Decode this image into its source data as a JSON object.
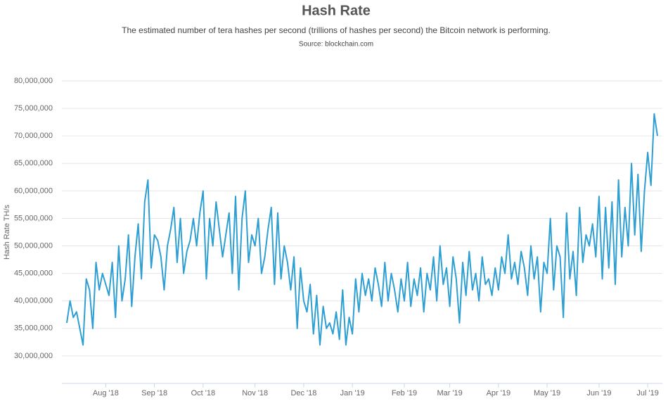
{
  "chart_data": {
    "type": "line",
    "title": "Hash Rate",
    "subtitle": "The estimated number of tera hashes per second (trillions of hashes per second) the Bitcoin network is performing.",
    "source": "Source: blockchain.com",
    "y_label": "Hash Rate TH/s",
    "color": "#2e9fd3",
    "grid": true,
    "ylim": [
      25000000,
      80000000
    ],
    "yticks": [
      {
        "value": 30000000,
        "label": "30,000,000"
      },
      {
        "value": 35000000,
        "label": "35,000,000"
      },
      {
        "value": 40000000,
        "label": "40,000,000"
      },
      {
        "value": 45000000,
        "label": "45,000,000"
      },
      {
        "value": 50000000,
        "label": "50,000,000"
      },
      {
        "value": 55000000,
        "label": "55,000,000"
      },
      {
        "value": 60000000,
        "label": "60,000,000"
      },
      {
        "value": 65000000,
        "label": "65,000,000"
      },
      {
        "value": 70000000,
        "label": "70,000,000"
      },
      {
        "value": 75000000,
        "label": "75,000,000"
      },
      {
        "value": 80000000,
        "label": "80,000,000"
      }
    ],
    "categories": [
      null,
      null,
      null,
      null,
      null,
      null,
      null,
      null,
      null,
      null,
      null,
      null,
      "Aug '18",
      null,
      null,
      null,
      null,
      null,
      null,
      null,
      null,
      null,
      null,
      null,
      null,
      null,
      null,
      "Sep '18",
      null,
      null,
      null,
      null,
      null,
      null,
      null,
      null,
      null,
      null,
      null,
      null,
      null,
      null,
      "Oct '18",
      null,
      null,
      null,
      null,
      null,
      null,
      null,
      null,
      null,
      null,
      null,
      null,
      null,
      null,
      null,
      "Nov '18",
      null,
      null,
      null,
      null,
      null,
      null,
      null,
      null,
      null,
      null,
      null,
      null,
      null,
      null,
      "Dec '18",
      null,
      null,
      null,
      null,
      null,
      null,
      null,
      null,
      null,
      null,
      null,
      null,
      null,
      null,
      "Jan '19",
      null,
      null,
      null,
      null,
      null,
      null,
      null,
      null,
      null,
      null,
      null,
      null,
      null,
      null,
      null,
      "Feb '19",
      null,
      null,
      null,
      null,
      null,
      null,
      null,
      null,
      null,
      null,
      null,
      null,
      null,
      "Mar '19",
      null,
      null,
      null,
      null,
      null,
      null,
      null,
      null,
      null,
      null,
      null,
      null,
      null,
      null,
      "Apr '19",
      null,
      null,
      null,
      null,
      null,
      null,
      null,
      null,
      null,
      null,
      null,
      null,
      null,
      null,
      "May '19",
      null,
      null,
      null,
      null,
      null,
      null,
      null,
      null,
      null,
      null,
      null,
      null,
      null,
      null,
      null,
      "Jun '19",
      null,
      null,
      null,
      null,
      null,
      null,
      null,
      null,
      null,
      null,
      null,
      null,
      null,
      null,
      "Jul '19",
      null,
      null,
      null
    ],
    "values": [
      36000000,
      40000000,
      37000000,
      38000000,
      35000000,
      32000000,
      44000000,
      42000000,
      35000000,
      47000000,
      42000000,
      45000000,
      43000000,
      41000000,
      47000000,
      37000000,
      50000000,
      40000000,
      44000000,
      52000000,
      39000000,
      48000000,
      54000000,
      44000000,
      58000000,
      62000000,
      46000000,
      52000000,
      51000000,
      48000000,
      42000000,
      50000000,
      53000000,
      57000000,
      47000000,
      55000000,
      45000000,
      49000000,
      51000000,
      55000000,
      50000000,
      56000000,
      60000000,
      44000000,
      55000000,
      50000000,
      58000000,
      53000000,
      48000000,
      52000000,
      56000000,
      45000000,
      59000000,
      42000000,
      55000000,
      60000000,
      47000000,
      52000000,
      50000000,
      55000000,
      45000000,
      48000000,
      53000000,
      57000000,
      43000000,
      56000000,
      44000000,
      50000000,
      47000000,
      42000000,
      48000000,
      35000000,
      46000000,
      40000000,
      38000000,
      43000000,
      34000000,
      41000000,
      32000000,
      39000000,
      35000000,
      36000000,
      34000000,
      38000000,
      33000000,
      42000000,
      32000000,
      37000000,
      34000000,
      44000000,
      38000000,
      45000000,
      41000000,
      44000000,
      40000000,
      46000000,
      43000000,
      39000000,
      47000000,
      40000000,
      45000000,
      42000000,
      38000000,
      44000000,
      40000000,
      47000000,
      39000000,
      44000000,
      41000000,
      46000000,
      38000000,
      45000000,
      42000000,
      48000000,
      40000000,
      50000000,
      43000000,
      46000000,
      39000000,
      48000000,
      44000000,
      36000000,
      47000000,
      41000000,
      49000000,
      42000000,
      45000000,
      40000000,
      48000000,
      43000000,
      44000000,
      41000000,
      46000000,
      42000000,
      48000000,
      45000000,
      52000000,
      44000000,
      47000000,
      43000000,
      49000000,
      46000000,
      41000000,
      50000000,
      44000000,
      48000000,
      38000000,
      47000000,
      45000000,
      55000000,
      42000000,
      50000000,
      48000000,
      37000000,
      56000000,
      44000000,
      49000000,
      41000000,
      57000000,
      47000000,
      52000000,
      50000000,
      54000000,
      48000000,
      59000000,
      44000000,
      57000000,
      46000000,
      58000000,
      43000000,
      62000000,
      48000000,
      57000000,
      50000000,
      65000000,
      52000000,
      63000000,
      49000000,
      60000000,
      67000000,
      61000000,
      74000000,
      70000000
    ]
  }
}
